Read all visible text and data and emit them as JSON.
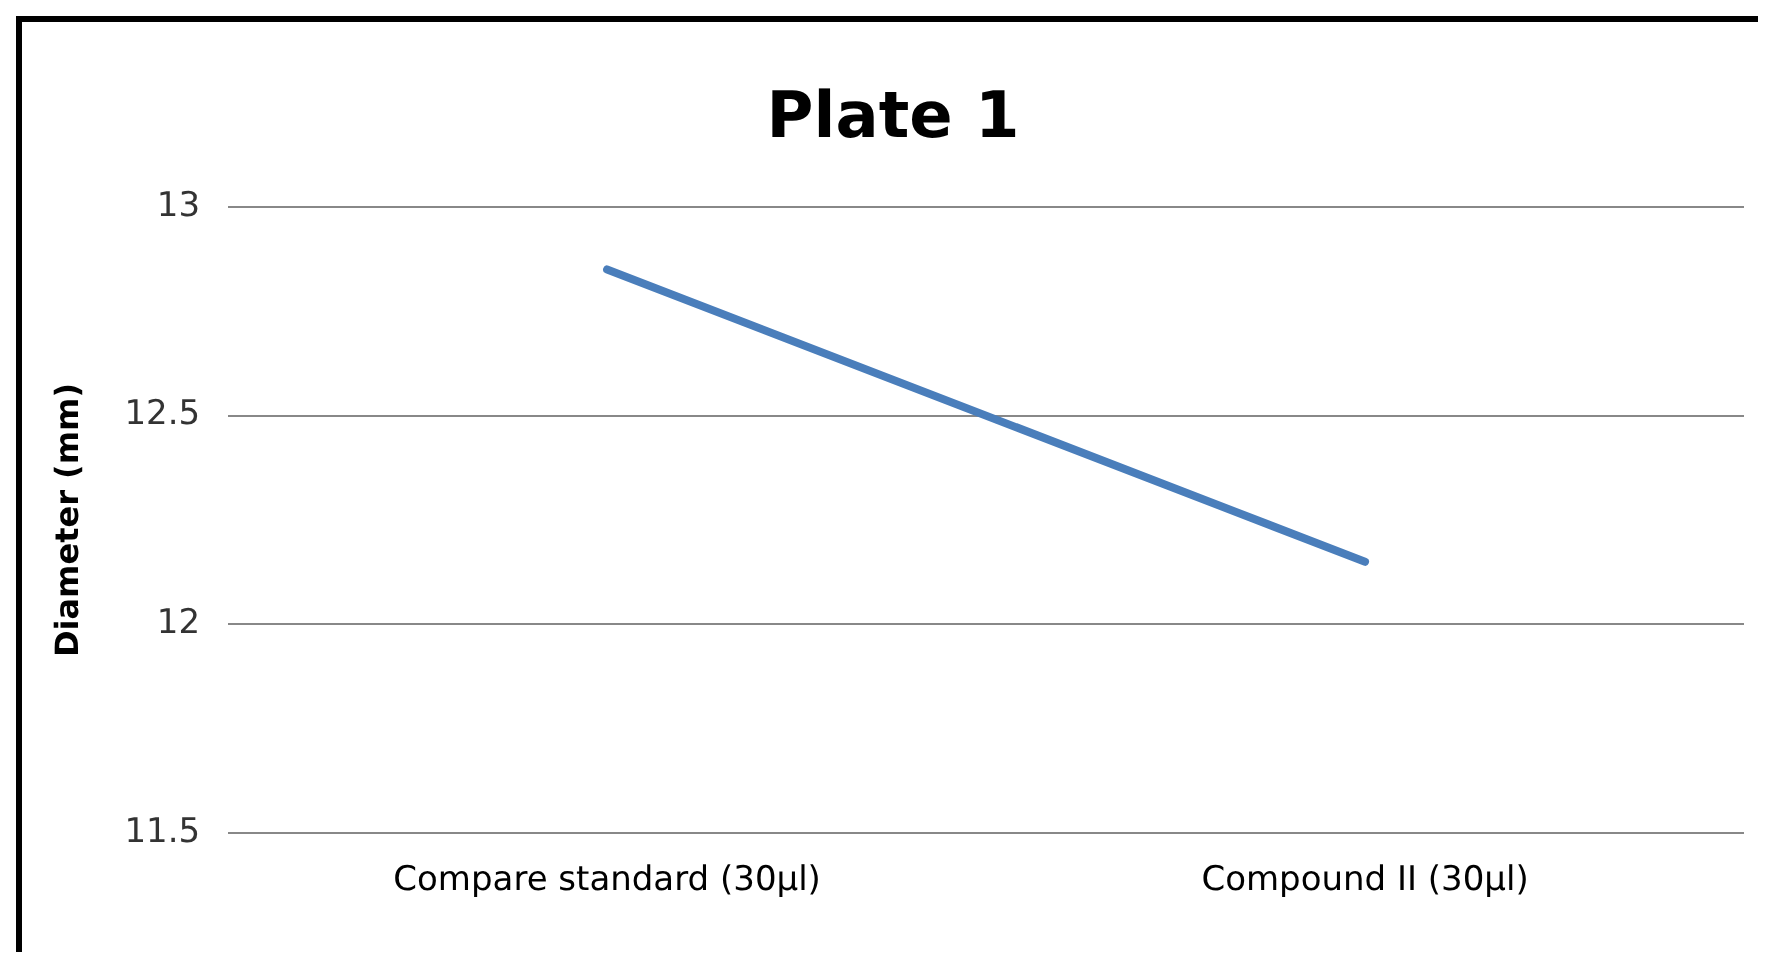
{
  "chart_data": {
    "type": "line",
    "title": "Plate 1",
    "ylabel": "Diameter (mm)",
    "categories": [
      "Compare standard (30µl)",
      "Compound II (30µl)"
    ],
    "series": [
      {
        "color": "#4a7ebb",
        "values": [
          12.85,
          12.15
        ]
      }
    ],
    "ylim": [
      11.5,
      13
    ],
    "yticks": [
      11.5,
      12,
      12.5,
      13
    ],
    "grid": "y",
    "legend": false,
    "marker": "none"
  }
}
